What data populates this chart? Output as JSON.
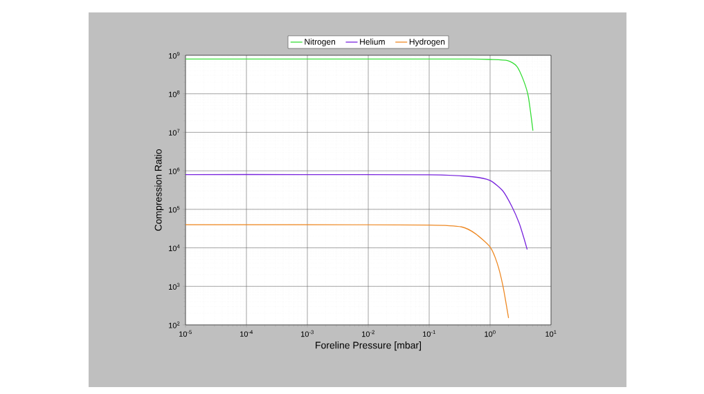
{
  "chart_data": {
    "type": "line",
    "xlabel": "Foreline Pressure [mbar]",
    "ylabel": "Compression Ratio",
    "log": "xy",
    "grid": true,
    "legend": "top",
    "xlim": [
      1e-05,
      10
    ],
    "ylim": [
      100,
      1000000000
    ],
    "xticks": [
      {
        "value": 1e-05,
        "label": "10$^{-5}$"
      },
      {
        "value": 0.0001,
        "label": "10$^{-4}$"
      },
      {
        "value": 0.001,
        "label": "10$^{-3}$"
      },
      {
        "value": 0.01,
        "label": "10$^{-2}$"
      },
      {
        "value": 0.1,
        "label": "10$^{-1}$"
      },
      {
        "value": 1,
        "label": "10$^{0}$"
      },
      {
        "value": 10,
        "label": "10$^{1}$"
      }
    ],
    "yticks": [
      {
        "value": 100,
        "label": "10$^{2}$"
      },
      {
        "value": 1000,
        "label": "10$^{3}$"
      },
      {
        "value": 10000,
        "label": "10$^{4}$"
      },
      {
        "value": 100000,
        "label": "10$^{5}$"
      },
      {
        "value": 1000000,
        "label": "10$^{6}$"
      },
      {
        "value": 10000000,
        "label": "10$^{7}$"
      },
      {
        "value": 100000000,
        "label": "10$^{8}$"
      },
      {
        "value": 1000000000,
        "label": "10$^{9}$"
      }
    ],
    "series": [
      {
        "name": "Nitrogen",
        "color": "#33dd33",
        "x": [
          1e-05,
          0.001,
          0.1,
          0.5,
          1,
          1.93,
          2.74,
          3.55,
          4.24,
          5.05
        ],
        "values": [
          800000000,
          800000000,
          800000000,
          800000000,
          780000000,
          730000000,
          520000000,
          220000000,
          85000000,
          11000000
        ]
      },
      {
        "name": "Helium",
        "color": "#7722dd",
        "x": [
          1e-05,
          0.001,
          0.1,
          0.52,
          1,
          1.62,
          2.3,
          3.0,
          3.55,
          4.06
        ],
        "values": [
          800000,
          800000,
          790000,
          700000,
          560000,
          300000,
          115000,
          44000,
          19000,
          9100
        ]
      },
      {
        "name": "Hydrogen",
        "color": "#ee8822",
        "x": [
          1e-05,
          0.001,
          0.1,
          0.34,
          0.57,
          1,
          1.3,
          1.62,
          2.01
        ],
        "values": [
          40000,
          40000,
          39000,
          35000,
          23500,
          10500,
          4100,
          1050,
          150
        ]
      }
    ]
  }
}
